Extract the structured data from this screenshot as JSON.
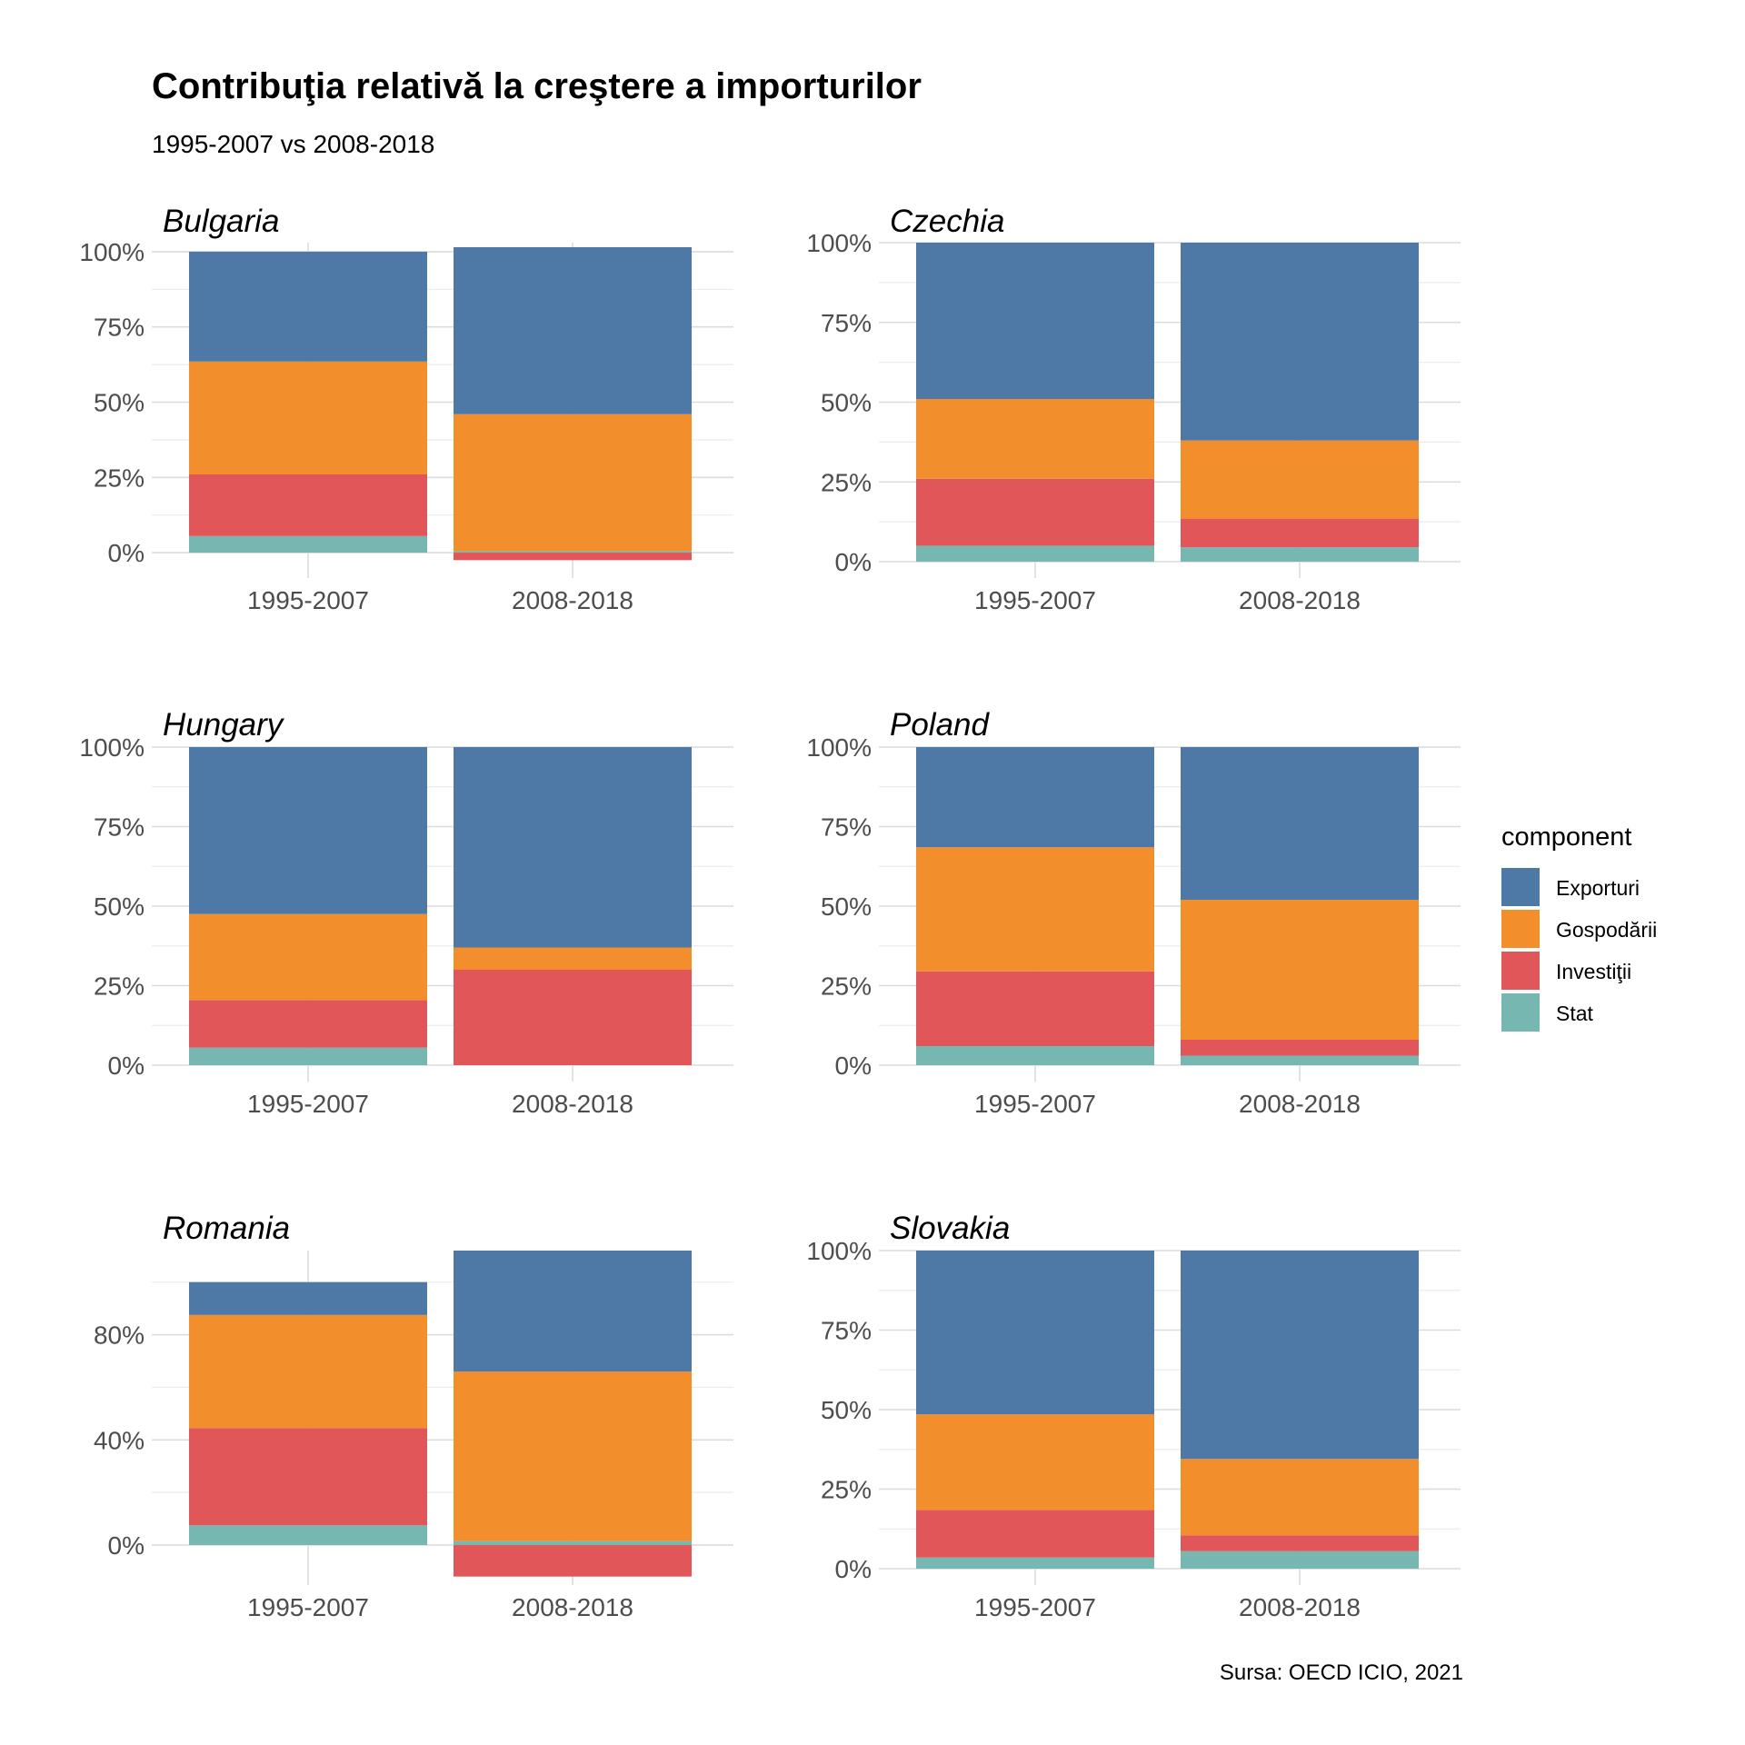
{
  "title": "Contribuţia relativă la creştere a importurilor",
  "subtitle": "1995-2007 vs 2008-2018",
  "caption": "Sursa: OECD ICIO, 2021",
  "legend": {
    "title": "component",
    "items": [
      {
        "label": "Exporturi",
        "color": "#4e79a7"
      },
      {
        "label": "Gospodării",
        "color": "#f28e2b"
      },
      {
        "label": "Investiţii",
        "color": "#e15759"
      },
      {
        "label": "Stat",
        "color": "#76b7b2"
      }
    ]
  },
  "chart_data": [
    {
      "type": "bar",
      "stacked": true,
      "title": "Bulgaria",
      "categories": [
        "1995-2007",
        "2008-2018"
      ],
      "ylim": [
        -0.03,
        1.03
      ],
      "yticks": [
        0,
        0.25,
        0.5,
        0.75,
        1.0
      ],
      "ytick_labels": [
        "0%",
        "25%",
        "50%",
        "75%",
        "100%"
      ],
      "series": [
        {
          "name": "Stat",
          "values": [
            0.055,
            0.005
          ]
        },
        {
          "name": "Investiţii",
          "values": [
            0.205,
            -0.025
          ]
        },
        {
          "name": "Gospodării",
          "values": [
            0.375,
            0.455
          ]
        },
        {
          "name": "Exporturi",
          "values": [
            0.365,
            0.555
          ]
        }
      ]
    },
    {
      "type": "bar",
      "stacked": true,
      "title": "Czechia",
      "categories": [
        "1995-2007",
        "2008-2018"
      ],
      "ylim": [
        0,
        1.0
      ],
      "yticks": [
        0,
        0.25,
        0.5,
        0.75,
        1.0
      ],
      "ytick_labels": [
        "0%",
        "25%",
        "50%",
        "75%",
        "100%"
      ],
      "series": [
        {
          "name": "Stat",
          "values": [
            0.05,
            0.045
          ]
        },
        {
          "name": "Investiţii",
          "values": [
            0.21,
            0.09
          ]
        },
        {
          "name": "Gospodării",
          "values": [
            0.25,
            0.245
          ]
        },
        {
          "name": "Exporturi",
          "values": [
            0.49,
            0.62
          ]
        }
      ]
    },
    {
      "type": "bar",
      "stacked": true,
      "title": "Hungary",
      "categories": [
        "1995-2007",
        "2008-2018"
      ],
      "ylim": [
        0,
        1.0
      ],
      "yticks": [
        0,
        0.25,
        0.5,
        0.75,
        1.0
      ],
      "ytick_labels": [
        "0%",
        "25%",
        "50%",
        "75%",
        "100%"
      ],
      "series": [
        {
          "name": "Stat",
          "values": [
            0.055,
            0.0
          ]
        },
        {
          "name": "Investiţii",
          "values": [
            0.15,
            0.3
          ]
        },
        {
          "name": "Gospodării",
          "values": [
            0.27,
            0.07
          ]
        },
        {
          "name": "Exporturi",
          "values": [
            0.525,
            0.63
          ]
        }
      ]
    },
    {
      "type": "bar",
      "stacked": true,
      "title": "Poland",
      "categories": [
        "1995-2007",
        "2008-2018"
      ],
      "ylim": [
        0,
        1.0
      ],
      "yticks": [
        0,
        0.25,
        0.5,
        0.75,
        1.0
      ],
      "ytick_labels": [
        "0%",
        "25%",
        "50%",
        "75%",
        "100%"
      ],
      "series": [
        {
          "name": "Stat",
          "values": [
            0.06,
            0.03
          ]
        },
        {
          "name": "Investiţii",
          "values": [
            0.235,
            0.05
          ]
        },
        {
          "name": "Gospodării",
          "values": [
            0.39,
            0.44
          ]
        },
        {
          "name": "Exporturi",
          "values": [
            0.315,
            0.48
          ]
        }
      ]
    },
    {
      "type": "bar",
      "stacked": true,
      "title": "Romania",
      "categories": [
        "1995-2007",
        "2008-2018"
      ],
      "ylim": [
        -0.09,
        1.12
      ],
      "yticks": [
        0,
        0.4,
        0.8
      ],
      "ytick_labels": [
        "0%",
        "40%",
        "80%"
      ],
      "series": [
        {
          "name": "Stat",
          "values": [
            0.075,
            0.015
          ]
        },
        {
          "name": "Investiţii",
          "values": [
            0.37,
            -0.12
          ]
        },
        {
          "name": "Gospodării",
          "values": [
            0.43,
            0.645
          ]
        },
        {
          "name": "Exporturi",
          "values": [
            0.125,
            0.46
          ]
        }
      ]
    },
    {
      "type": "bar",
      "stacked": true,
      "title": "Slovakia",
      "categories": [
        "1995-2007",
        "2008-2018"
      ],
      "ylim": [
        0,
        1.0
      ],
      "yticks": [
        0,
        0.25,
        0.5,
        0.75,
        1.0
      ],
      "ytick_labels": [
        "0%",
        "25%",
        "50%",
        "75%",
        "100%"
      ],
      "series": [
        {
          "name": "Stat",
          "values": [
            0.035,
            0.055
          ]
        },
        {
          "name": "Investiţii",
          "values": [
            0.15,
            0.05
          ]
        },
        {
          "name": "Gospodării",
          "values": [
            0.3,
            0.24
          ]
        },
        {
          "name": "Exporturi",
          "values": [
            0.515,
            0.655
          ]
        }
      ]
    }
  ]
}
